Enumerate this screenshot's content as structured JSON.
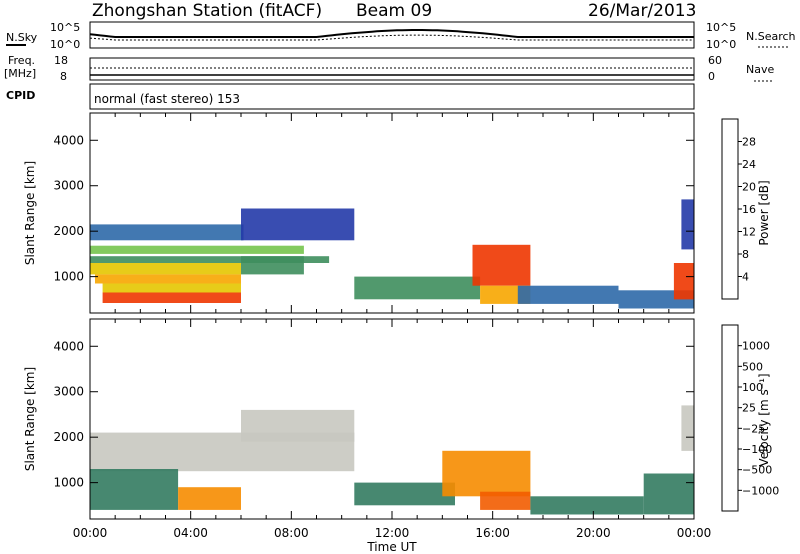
{
  "header": {
    "station": "Zhongshan Station (fitACF)",
    "beam": "Beam 09",
    "date": "26/Mar/2013"
  },
  "top_panel": {
    "left_label": "N.Sky",
    "right_label": "N.Search",
    "left_ticks": [
      "10^5",
      "10^0"
    ],
    "right_ticks": [
      "10^5",
      "10^0"
    ]
  },
  "freq_panel": {
    "left_label_1": "Freq.",
    "left_label_2": "[MHz]",
    "right_label": "Nave",
    "left_ticks": [
      "18",
      "8"
    ],
    "right_ticks": [
      "60",
      "0"
    ]
  },
  "cpid_panel": {
    "label": "CPID",
    "text": "normal (fast stereo) 153"
  },
  "chart_data": [
    {
      "type": "heatmap",
      "title": "",
      "xlabel": "Time UT",
      "ylabel": "Slant Range [km]",
      "x_ticks": [
        "00:00",
        "04:00",
        "08:00",
        "12:00",
        "16:00",
        "20:00",
        "00:00"
      ],
      "xlim_hours": [
        0,
        24
      ],
      "y_ticks": [
        1000,
        2000,
        3000,
        4000
      ],
      "ylim": [
        200,
        4600
      ],
      "colorbar": {
        "label": "Power [dB]",
        "tick_labels": [
          "4",
          "8",
          "12",
          "16",
          "20",
          "24",
          "28"
        ],
        "colors": [
          "#0016ff",
          "#233aa8",
          "#2e69a8",
          "#3e8e5d",
          "#76c44c",
          "#e4c600",
          "#f7a600",
          "#f26d00",
          "#ee3600",
          "#e50000"
        ]
      },
      "regions": [
        {
          "x": [
            0.0,
            6.1
          ],
          "y": [
            1800,
            2150
          ],
          "level": 2
        },
        {
          "x": [
            0.0,
            8.5
          ],
          "y": [
            1500,
            1680
          ],
          "level": 4
        },
        {
          "x": [
            0.0,
            9.5
          ],
          "y": [
            1300,
            1450
          ],
          "level": 3
        },
        {
          "x": [
            0.0,
            6.0
          ],
          "y": [
            1050,
            1300
          ],
          "level": 5
        },
        {
          "x": [
            0.2,
            6.0
          ],
          "y": [
            850,
            1050
          ],
          "level": 6
        },
        {
          "x": [
            0.5,
            6.0
          ],
          "y": [
            650,
            850
          ],
          "level": 5
        },
        {
          "x": [
            0.5,
            6.0
          ],
          "y": [
            420,
            650
          ],
          "level": 8
        },
        {
          "x": [
            6.0,
            8.5
          ],
          "y": [
            1050,
            1450
          ],
          "level": 3
        },
        {
          "x": [
            6.0,
            10.5
          ],
          "y": [
            1800,
            2500
          ],
          "level": 1
        },
        {
          "x": [
            10.5,
            15.5
          ],
          "y": [
            500,
            1000
          ],
          "level": 3
        },
        {
          "x": [
            15.2,
            17.5
          ],
          "y": [
            800,
            1700
          ],
          "level": 8
        },
        {
          "x": [
            15.5,
            17.5
          ],
          "y": [
            400,
            800
          ],
          "level": 6
        },
        {
          "x": [
            17.0,
            21.0
          ],
          "y": [
            400,
            800
          ],
          "level": 2
        },
        {
          "x": [
            21.0,
            24.0
          ],
          "y": [
            300,
            700
          ],
          "level": 2
        },
        {
          "x": [
            23.2,
            24.0
          ],
          "y": [
            500,
            1300
          ],
          "level": 8
        },
        {
          "x": [
            23.5,
            24.0
          ],
          "y": [
            1600,
            2700
          ],
          "level": 1
        }
      ]
    },
    {
      "type": "heatmap",
      "title": "",
      "xlabel": "Time UT",
      "ylabel": "Slant Range [km]",
      "x_ticks": [
        "00:00",
        "04:00",
        "08:00",
        "12:00",
        "16:00",
        "20:00",
        "00:00"
      ],
      "xlim_hours": [
        0,
        24
      ],
      "y_ticks": [
        1000,
        2000,
        3000,
        4000
      ],
      "ylim": [
        200,
        4600
      ],
      "colorbar": {
        "label": "Velocity [m s⁻¹]",
        "tick_labels": [
          "1000",
          "500",
          "100",
          "25",
          "−25",
          "−100",
          "−500",
          "−1000"
        ],
        "colors": [
          "#0000e0",
          "#2354a5",
          "#337b61",
          "#3b9e3a",
          "#7ccf3c",
          "#c8c8c0",
          "#f7b400",
          "#f68c00",
          "#f25c00",
          "#ef2a00",
          "#e60000"
        ]
      },
      "regions": [
        {
          "x": [
            0.0,
            10.5
          ],
          "y": [
            1250,
            2100
          ],
          "level": 5
        },
        {
          "x": [
            6.0,
            10.5
          ],
          "y": [
            1900,
            2600
          ],
          "level": 5
        },
        {
          "x": [
            0.0,
            3.5
          ],
          "y": [
            400,
            1300
          ],
          "level": 2
        },
        {
          "x": [
            3.5,
            6.0
          ],
          "y": [
            400,
            900
          ],
          "level": 7
        },
        {
          "x": [
            10.5,
            14.5
          ],
          "y": [
            500,
            1000
          ],
          "level": 2
        },
        {
          "x": [
            14.0,
            17.5
          ],
          "y": [
            700,
            1700
          ],
          "level": 7
        },
        {
          "x": [
            15.5,
            17.5
          ],
          "y": [
            400,
            800
          ],
          "level": 8
        },
        {
          "x": [
            17.5,
            22.0
          ],
          "y": [
            300,
            700
          ],
          "level": 2
        },
        {
          "x": [
            22.0,
            24.0
          ],
          "y": [
            300,
            1200
          ],
          "level": 2
        },
        {
          "x": [
            23.5,
            24.0
          ],
          "y": [
            1700,
            2700
          ],
          "level": 5
        }
      ]
    }
  ]
}
